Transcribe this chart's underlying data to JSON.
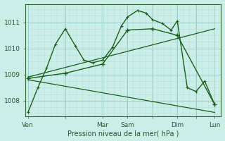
{
  "background_color": "#cceee8",
  "grid_color_minor": "#b8ddd8",
  "grid_color_major": "#99cccc",
  "line_color": "#1a5f1a",
  "xlabel": "Pression niveau de la mer( hPa )",
  "xtick_labels": [
    "Ven",
    "",
    "Mar",
    "Sam",
    "",
    "Dim",
    "",
    "Lun"
  ],
  "xtick_positions": [
    0,
    3,
    6,
    8,
    10,
    12,
    13.5,
    15
  ],
  "ylim": [
    1007.4,
    1011.7
  ],
  "yticks": [
    1008,
    1009,
    1010,
    1011
  ],
  "xlim": [
    -0.2,
    15.5
  ],
  "line1_x": [
    0,
    0.8,
    1.5,
    2.2,
    3,
    3.8,
    4.5,
    5.2,
    6,
    6.8,
    7.5,
    8,
    8.8,
    9.5,
    10,
    10.8,
    11.5,
    12,
    12.8,
    13.5,
    14.2,
    15
  ],
  "line1_y": [
    1007.55,
    1008.5,
    1009.25,
    1010.15,
    1010.75,
    1010.1,
    1009.55,
    1009.45,
    1009.55,
    1010.05,
    1010.85,
    1011.2,
    1011.45,
    1011.35,
    1011.1,
    1010.95,
    1010.7,
    1011.05,
    1008.5,
    1008.35,
    1008.75,
    1007.85
  ],
  "line2_x": [
    0,
    3,
    6,
    8,
    10,
    12,
    15
  ],
  "line2_y": [
    1008.85,
    1009.05,
    1009.4,
    1010.7,
    1010.75,
    1010.5,
    1007.85
  ],
  "line3_x": [
    0,
    15
  ],
  "line3_y": [
    1008.8,
    1007.55
  ],
  "line4_x": [
    0,
    15
  ],
  "line4_y": [
    1008.9,
    1010.75
  ]
}
